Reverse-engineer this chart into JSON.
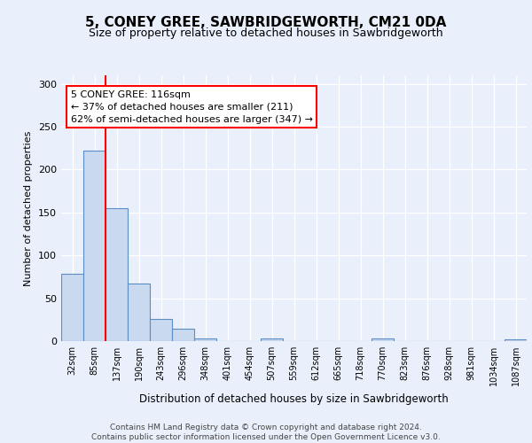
{
  "title1": "5, CONEY GREE, SAWBRIDGEWORTH, CM21 0DA",
  "title2": "Size of property relative to detached houses in Sawbridgeworth",
  "xlabel": "Distribution of detached houses by size in Sawbridgeworth",
  "ylabel": "Number of detached properties",
  "bar_labels": [
    "32sqm",
    "85sqm",
    "137sqm",
    "190sqm",
    "243sqm",
    "296sqm",
    "348sqm",
    "401sqm",
    "454sqm",
    "507sqm",
    "559sqm",
    "612sqm",
    "665sqm",
    "718sqm",
    "770sqm",
    "823sqm",
    "876sqm",
    "928sqm",
    "981sqm",
    "1034sqm",
    "1087sqm"
  ],
  "bar_values": [
    79,
    222,
    155,
    67,
    26,
    14,
    3,
    0,
    0,
    3,
    0,
    0,
    0,
    0,
    3,
    0,
    0,
    0,
    0,
    0,
    2
  ],
  "bar_color": "#c9d9f0",
  "bar_edge_color": "#5b8ec4",
  "vline_color": "red",
  "vline_x": 1.5,
  "annotation_line1": "5 CONEY GREE: 116sqm",
  "annotation_line2": "← 37% of detached houses are smaller (211)",
  "annotation_line3": "62% of semi-detached houses are larger (347) →",
  "annotation_box_color": "white",
  "annotation_box_edge_color": "red",
  "ylim": [
    0,
    310
  ],
  "yticks": [
    0,
    50,
    100,
    150,
    200,
    250,
    300
  ],
  "footer_text": "Contains HM Land Registry data © Crown copyright and database right 2024.\nContains public sector information licensed under the Open Government Licence v3.0.",
  "bg_color": "#eaf0fb",
  "plot_bg_color": "#eaf0fb"
}
